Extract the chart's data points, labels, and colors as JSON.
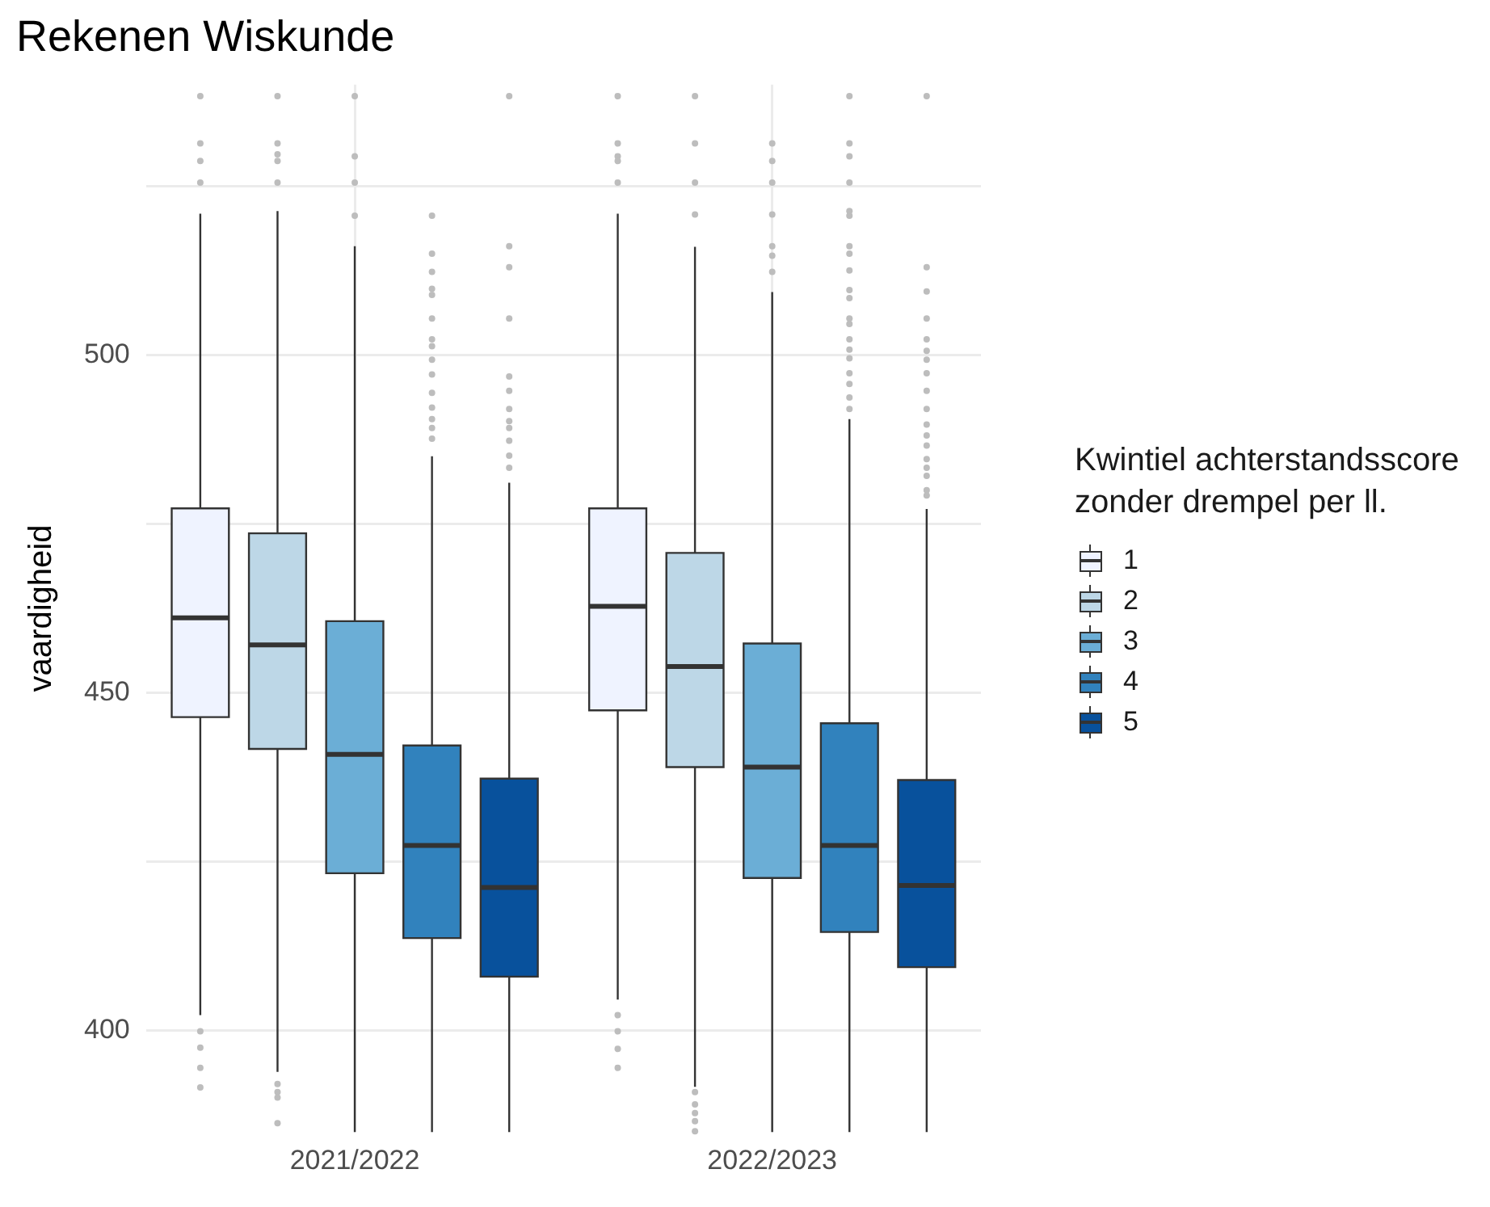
{
  "chart_data": {
    "type": "box",
    "title": "Rekenen Wiskunde",
    "ylabel": "vaardigheid",
    "legend_title": "Kwintiel achterstandsscore zonder drempel per ll.",
    "categories": [
      "2021/2022",
      "2022/2023"
    ],
    "ylim": [
      385,
      540
    ],
    "yticks": [
      400,
      {
        "value": 425,
        "label": null
      },
      450,
      {
        "value": 475,
        "label": null
      },
      500,
      {
        "value": 525,
        "label": null
      }
    ],
    "grid": true,
    "legend": "right",
    "series": [
      {
        "name": "1",
        "color": "#eff3ff",
        "boxes": [
          {
            "low": 402.3,
            "q1": 446.4,
            "median": 461.1,
            "q3": 477.3,
            "high": 520.9,
            "outliers": [
              538.3,
              531.3,
              528.7,
              525.5,
              399.9,
              397.5,
              394.5,
              391.6
            ]
          },
          {
            "low": 404.6,
            "q1": 447.4,
            "median": 462.8,
            "q3": 477.3,
            "high": 520.9,
            "outliers": [
              538.3,
              531.3,
              529.4,
              528.7,
              525.5,
              402.3,
              399.9,
              397.3,
              394.5
            ]
          }
        ]
      },
      {
        "name": "2",
        "color": "#bdd7e7",
        "boxes": [
          {
            "low": 393.9,
            "q1": 441.7,
            "median": 457.1,
            "q3": 473.6,
            "high": 521.3,
            "outliers": [
              538.3,
              531.3,
              529.7,
              528.7,
              525.5,
              392.1,
              390.9,
              390.1,
              386.3
            ]
          },
          {
            "low": 391.7,
            "q1": 439.0,
            "median": 453.9,
            "q3": 470.7,
            "high": 516.0,
            "outliers": [
              538.3,
              531.3,
              525.5,
              520.8,
              390.9,
              389.1,
              387.8,
              386.6,
              385.1
            ]
          }
        ]
      },
      {
        "name": "3",
        "color": "#6baed6",
        "boxes": [
          {
            "low": 385,
            "q1": 423.3,
            "median": 440.9,
            "q3": 460.6,
            "high": 516.1,
            "outliers": [
              538.3,
              529.4,
              525.5,
              520.6
            ]
          },
          {
            "low": 385,
            "q1": 422.6,
            "median": 439.0,
            "q3": 457.3,
            "high": 509.3,
            "outliers": [
              531.3,
              528.7,
              525.5,
              520.8,
              516.1,
              514.7,
              512.3
            ]
          }
        ]
      },
      {
        "name": "4",
        "color": "#3182bd",
        "boxes": [
          {
            "low": 385,
            "q1": 413.7,
            "median": 427.4,
            "q3": 442.2,
            "high": 485.0,
            "outliers": [
              520.6,
              515.0,
              512.3,
              509.8,
              508.9,
              505.4,
              502.3,
              501.3,
              499.3,
              497.1,
              494.4,
              492.2,
              490.5,
              489.2,
              487.6
            ]
          },
          {
            "low": 385,
            "q1": 414.6,
            "median": 427.4,
            "q3": 445.5,
            "high": 490.5,
            "outliers": [
              538.3,
              531.3,
              529.4,
              525.5,
              521.3,
              520.6,
              516.1,
              515.0,
              512.5,
              509.6,
              508.4,
              505.4,
              504.6,
              502.3,
              500.8,
              499.5,
              497.3,
              495.7,
              493.7,
              492.0
            ]
          }
        ]
      },
      {
        "name": "5",
        "color": "#08519c",
        "boxes": [
          {
            "low": 385,
            "q1": 408.0,
            "median": 421.2,
            "q3": 437.3,
            "high": 481.1,
            "outliers": [
              538.3,
              516.1,
              513.0,
              505.4,
              496.8,
              494.7,
              492.0,
              490.2,
              489.2,
              487.3,
              485.1,
              483.3
            ]
          },
          {
            "low": 385,
            "q1": 409.4,
            "median": 421.5,
            "q3": 437.1,
            "high": 477.2,
            "outliers": [
              538.3,
              513.0,
              509.4,
              505.4,
              502.3,
              500.6,
              499.3,
              497.3,
              494.7,
              492.0,
              489.7,
              488.1,
              486.6,
              484.6,
              483.3,
              482.1,
              480.0,
              479.2
            ]
          }
        ]
      }
    ]
  }
}
